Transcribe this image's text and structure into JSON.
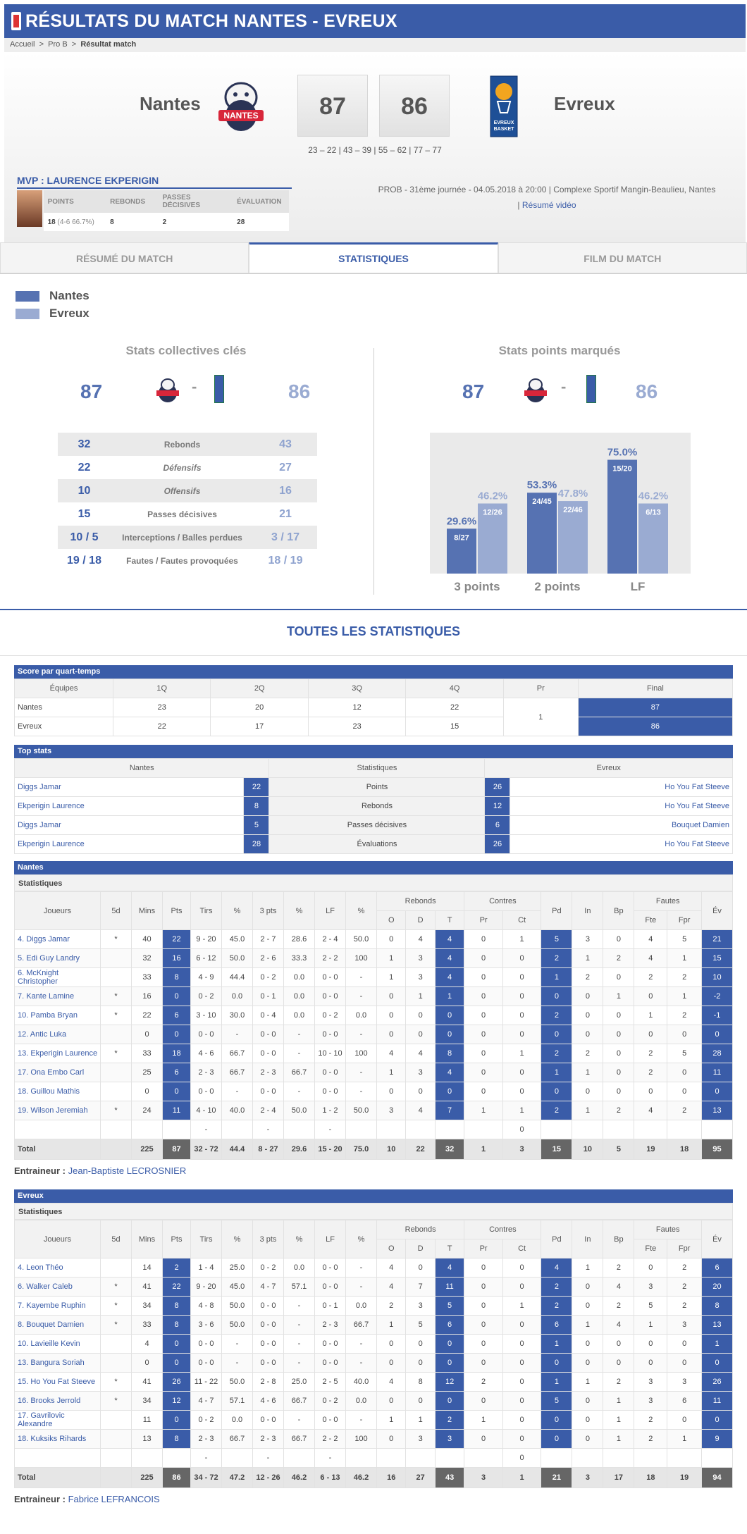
{
  "header": {
    "title": "RÉSULTATS DU MATCH NANTES - EVREUX"
  },
  "breadcrumb": {
    "home": "Accueil",
    "league": "Pro B",
    "current": "Résultat match",
    "sep": ">"
  },
  "match": {
    "home": "Nantes",
    "away": "Evreux",
    "home_score": "87",
    "away_score": "86",
    "quarters": "23 – 22  |   43 – 39  |   55 – 62  |   77 – 77",
    "info": "PROB - 31ème journée - 04.05.2018 à 20:00 | Complexe Sportif Mangin-Beaulieu, Nantes",
    "video": "Résumé vidéo",
    "video_prefix": "| "
  },
  "mvp": {
    "title": "MVP : LAURENCE EKPERIGIN",
    "h_points": "POINTS",
    "h_rebonds": "REBONDS",
    "h_passes": "PASSES DÉCISIVES",
    "h_eval": "ÉVALUATION",
    "points": "18",
    "points_detail": "(4-6 66.7%)",
    "rebonds": "8",
    "passes": "2",
    "eval": "28"
  },
  "tabs": [
    "RÉSUMÉ DU MATCH",
    "STATISTIQUES",
    "FILM DU MATCH"
  ],
  "legend": {
    "home": "Nantes",
    "away": "Evreux",
    "home_color": "#5672b2",
    "away_color": "#9aabd2"
  },
  "key_stats": {
    "title": "Stats collectives clés",
    "home": "87",
    "away": "86",
    "dash": "-",
    "rows": [
      [
        "32",
        "Rebonds",
        "43",
        false
      ],
      [
        "22",
        "Défensifs",
        "27",
        true
      ],
      [
        "10",
        "Offensifs",
        "16",
        true
      ],
      [
        "15",
        "Passes décisives",
        "21",
        false
      ],
      [
        "10 / 5",
        "Interceptions / Balles perdues",
        "3 / 17",
        false
      ],
      [
        "19 / 18",
        "Fautes / Fautes provoquées",
        "18 / 19",
        false
      ]
    ]
  },
  "points_stats": {
    "title": "Stats points marqués",
    "home": "87",
    "away": "86",
    "dash": "-"
  },
  "chart_data": {
    "type": "bar",
    "categories": [
      "3 points",
      "2 points",
      "LF"
    ],
    "series": [
      {
        "name": "Nantes",
        "values": [
          29.6,
          53.3,
          75.0
        ],
        "labels": [
          "8/27",
          "24/45",
          "15/20"
        ],
        "pct": [
          "29.6%",
          "53.3%",
          "75.0%"
        ]
      },
      {
        "name": "Evreux",
        "values": [
          46.2,
          47.8,
          46.2
        ],
        "labels": [
          "12/26",
          "22/46",
          "6/13"
        ],
        "pct": [
          "46.2%",
          "47.8%",
          "46.2%"
        ]
      }
    ],
    "ylim": [
      0,
      100
    ],
    "colors": [
      "#5672b2",
      "#9aabd2"
    ]
  },
  "all_stats_title": "TOUTES LES STATISTIQUES",
  "quarter_table": {
    "title": "Score par quart-temps",
    "headers": [
      "Équipes",
      "1Q",
      "2Q",
      "3Q",
      "4Q",
      "Pr",
      "Final"
    ],
    "rows": [
      [
        "Nantes",
        "23",
        "20",
        "12",
        "22",
        "87"
      ],
      [
        "Evreux",
        "22",
        "17",
        "23",
        "15",
        "86"
      ]
    ],
    "pr": "1"
  },
  "top_stats": {
    "title": "Top stats",
    "headers": [
      "Nantes",
      "Statistiques",
      "Evreux"
    ],
    "rows": [
      [
        "Diggs Jamar",
        "22",
        "Points",
        "26",
        "Ho You Fat Steeve"
      ],
      [
        "Ekperigin Laurence",
        "8",
        "Rebonds",
        "12",
        "Ho You Fat Steeve"
      ],
      [
        "Diggs Jamar",
        "5",
        "Passes décisives",
        "6",
        "Bouquet Damien"
      ],
      [
        "Ekperigin Laurence",
        "28",
        "Évaluations",
        "26",
        "Ho You Fat Steeve"
      ]
    ]
  },
  "box_headers": {
    "stats": "Statistiques",
    "joueurs": "Joueurs",
    "cols": [
      "5d",
      "Mins",
      "Pts",
      "Tirs",
      "%",
      "3 pts",
      "%",
      "LF",
      "%"
    ],
    "rebonds": "Rebonds",
    "reb_sub": [
      "O",
      "D",
      "T"
    ],
    "contres": "Contres",
    "con_sub": [
      "Pr",
      "Ct"
    ],
    "pd": "Pd",
    "in": "In",
    "bp": "Bp",
    "fautes": "Fautes",
    "f_sub": [
      "Fte",
      "Fpr"
    ],
    "ev": "Év"
  },
  "nantes": {
    "title": "Nantes",
    "coach_label": "Entraineur :",
    "coach": "Jean-Baptiste LECROSNIER",
    "players": [
      [
        "4. Diggs Jamar",
        "*",
        "40",
        "22",
        "9 - 20",
        "45.0",
        "2 - 7",
        "28.6",
        "2 - 4",
        "50.0",
        "0",
        "4",
        "4",
        "0",
        "1",
        "5",
        "3",
        "0",
        "4",
        "5",
        "21"
      ],
      [
        "5. Edi Guy Landry",
        "",
        "32",
        "16",
        "6 - 12",
        "50.0",
        "2 - 6",
        "33.3",
        "2 - 2",
        "100",
        "1",
        "3",
        "4",
        "0",
        "0",
        "2",
        "1",
        "2",
        "4",
        "1",
        "15"
      ],
      [
        "6. McKnight Christopher",
        "",
        "33",
        "8",
        "4 - 9",
        "44.4",
        "0 - 2",
        "0.0",
        "0 - 0",
        "-",
        "1",
        "3",
        "4",
        "0",
        "0",
        "1",
        "2",
        "0",
        "2",
        "2",
        "10"
      ],
      [
        "7. Kante Lamine",
        "*",
        "16",
        "0",
        "0 - 2",
        "0.0",
        "0 - 1",
        "0.0",
        "0 - 0",
        "-",
        "0",
        "1",
        "1",
        "0",
        "0",
        "0",
        "0",
        "1",
        "0",
        "1",
        "-2"
      ],
      [
        "10. Pamba Bryan",
        "*",
        "22",
        "6",
        "3 - 10",
        "30.0",
        "0 - 4",
        "0.0",
        "0 - 2",
        "0.0",
        "0",
        "0",
        "0",
        "0",
        "0",
        "2",
        "0",
        "0",
        "1",
        "2",
        "-1"
      ],
      [
        "12. Antic Luka",
        "",
        "0",
        "0",
        "0 - 0",
        "-",
        "0 - 0",
        "-",
        "0 - 0",
        "-",
        "0",
        "0",
        "0",
        "0",
        "0",
        "0",
        "0",
        "0",
        "0",
        "0",
        "0"
      ],
      [
        "13. Ekperigin Laurence",
        "*",
        "33",
        "18",
        "4 - 6",
        "66.7",
        "0 - 0",
        "-",
        "10 - 10",
        "100",
        "4",
        "4",
        "8",
        "0",
        "1",
        "2",
        "2",
        "0",
        "2",
        "5",
        "28"
      ],
      [
        "17. Ona Embo Carl",
        "",
        "25",
        "6",
        "2 - 3",
        "66.7",
        "2 - 3",
        "66.7",
        "0 - 0",
        "-",
        "1",
        "3",
        "4",
        "0",
        "0",
        "1",
        "1",
        "0",
        "2",
        "0",
        "11"
      ],
      [
        "18. Guillou Mathis",
        "",
        "0",
        "0",
        "0 - 0",
        "-",
        "0 - 0",
        "-",
        "0 - 0",
        "-",
        "0",
        "0",
        "0",
        "0",
        "0",
        "0",
        "0",
        "0",
        "0",
        "0",
        "0"
      ],
      [
        "19. Wilson Jeremiah",
        "*",
        "24",
        "11",
        "4 - 10",
        "40.0",
        "2 - 4",
        "50.0",
        "1 - 2",
        "50.0",
        "3",
        "4",
        "7",
        "1",
        "1",
        "2",
        "1",
        "2",
        "4",
        "2",
        "13"
      ],
      [
        "",
        "",
        "",
        "",
        "-",
        "",
        "-",
        "",
        "-",
        "",
        "",
        "",
        "",
        "",
        "0",
        "",
        "",
        "",
        "",
        "",
        ""
      ]
    ],
    "total": [
      "Total",
      "",
      "225",
      "87",
      "32 - 72",
      "44.4",
      "8 - 27",
      "29.6",
      "15 - 20",
      "75.0",
      "10",
      "22",
      "32",
      "1",
      "3",
      "15",
      "10",
      "5",
      "19",
      "18",
      "95"
    ]
  },
  "evreux": {
    "title": "Evreux",
    "coach_label": "Entraineur :",
    "coach": "Fabrice LEFRANCOIS",
    "players": [
      [
        "4. Leon Théo",
        "",
        "14",
        "2",
        "1 - 4",
        "25.0",
        "0 - 2",
        "0.0",
        "0 - 0",
        "-",
        "4",
        "0",
        "4",
        "0",
        "0",
        "4",
        "1",
        "2",
        "0",
        "2",
        "6"
      ],
      [
        "6. Walker Caleb",
        "*",
        "41",
        "22",
        "9 - 20",
        "45.0",
        "4 - 7",
        "57.1",
        "0 - 0",
        "-",
        "4",
        "7",
        "11",
        "0",
        "0",
        "2",
        "0",
        "4",
        "3",
        "2",
        "20"
      ],
      [
        "7. Kayembe Ruphin",
        "*",
        "34",
        "8",
        "4 - 8",
        "50.0",
        "0 - 0",
        "-",
        "0 - 1",
        "0.0",
        "2",
        "3",
        "5",
        "0",
        "1",
        "2",
        "0",
        "2",
        "5",
        "2",
        "8"
      ],
      [
        "8. Bouquet Damien",
        "*",
        "33",
        "8",
        "3 - 6",
        "50.0",
        "0 - 0",
        "-",
        "2 - 3",
        "66.7",
        "1",
        "5",
        "6",
        "0",
        "0",
        "6",
        "1",
        "4",
        "1",
        "3",
        "13"
      ],
      [
        "10. Lavieille Kevin",
        "",
        "4",
        "0",
        "0 - 0",
        "-",
        "0 - 0",
        "-",
        "0 - 0",
        "-",
        "0",
        "0",
        "0",
        "0",
        "0",
        "1",
        "0",
        "0",
        "0",
        "0",
        "1"
      ],
      [
        "13. Bangura Soriah",
        "",
        "0",
        "0",
        "0 - 0",
        "-",
        "0 - 0",
        "-",
        "0 - 0",
        "-",
        "0",
        "0",
        "0",
        "0",
        "0",
        "0",
        "0",
        "0",
        "0",
        "0",
        "0"
      ],
      [
        "15. Ho You Fat Steeve",
        "*",
        "41",
        "26",
        "11 - 22",
        "50.0",
        "2 - 8",
        "25.0",
        "2 - 5",
        "40.0",
        "4",
        "8",
        "12",
        "2",
        "0",
        "1",
        "1",
        "2",
        "3",
        "3",
        "26"
      ],
      [
        "16. Brooks Jerrold",
        "*",
        "34",
        "12",
        "4 - 7",
        "57.1",
        "4 - 6",
        "66.7",
        "0 - 2",
        "0.0",
        "0",
        "0",
        "0",
        "0",
        "0",
        "5",
        "0",
        "1",
        "3",
        "6",
        "11"
      ],
      [
        "17. Gavrilovic Alexandre",
        "",
        "11",
        "0",
        "0 - 2",
        "0.0",
        "0 - 0",
        "-",
        "0 - 0",
        "-",
        "1",
        "1",
        "2",
        "1",
        "0",
        "0",
        "0",
        "1",
        "2",
        "0",
        "0"
      ],
      [
        "18. Kuksiks Rihards",
        "",
        "13",
        "8",
        "2 - 3",
        "66.7",
        "2 - 3",
        "66.7",
        "2 - 2",
        "100",
        "0",
        "3",
        "3",
        "0",
        "0",
        "0",
        "0",
        "1",
        "2",
        "1",
        "9"
      ],
      [
        "",
        "",
        "",
        "",
        "-",
        "",
        "-",
        "",
        "-",
        "",
        "",
        "",
        "",
        "",
        "0",
        "",
        "",
        "",
        "",
        "",
        ""
      ]
    ],
    "total": [
      "Total",
      "",
      "225",
      "86",
      "34 - 72",
      "47.2",
      "12 - 26",
      "46.2",
      "6 - 13",
      "46.2",
      "16",
      "27",
      "43",
      "3",
      "1",
      "21",
      "3",
      "17",
      "18",
      "19",
      "94"
    ]
  }
}
